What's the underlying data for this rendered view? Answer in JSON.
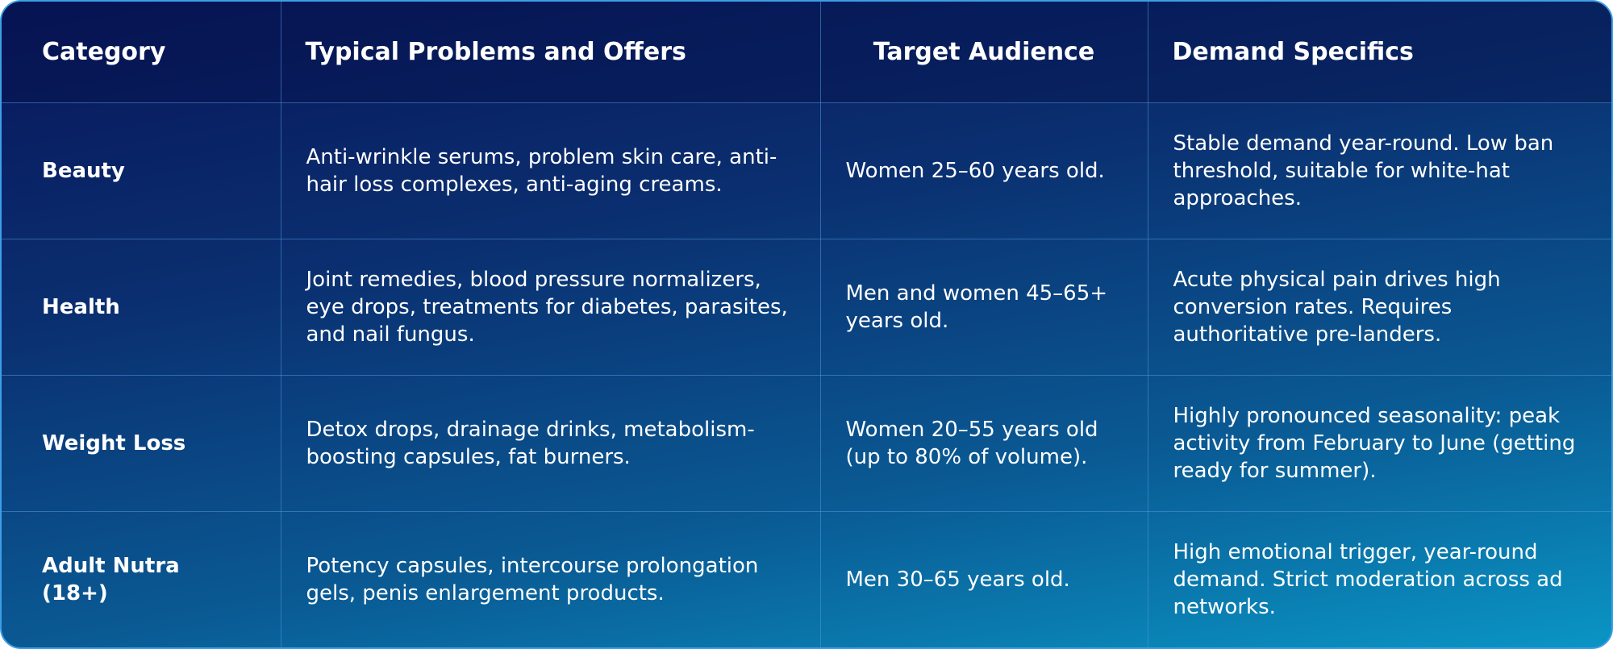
{
  "table": {
    "header": [
      "Category",
      "Typical Problems and Offers",
      "Target Audience",
      "Demand Specifics"
    ],
    "rows": [
      [
        "Beauty",
        "Anti-wrinkle serums, problem skin care, anti-hair loss complexes, anti-aging creams.",
        "Women 25–60 years old.",
        "Stable demand year-round. Low ban threshold, suitable for white-hat approaches."
      ],
      [
        "Health",
        "Joint remedies, blood pressure normalizers, eye drops, treatments for diabetes, parasites, and nail fungus.",
        "Men and women 45–65+ years old.",
        "Acute physical pain drives high conversion rates. Requires authoritative pre-landers."
      ],
      [
        "Weight Loss",
        "Detox drops, drainage drinks, metabolism-boosting capsules, fat burners.",
        "Women 20–55 years old (up to 80% of volume).",
        "Highly pronounced seasonality: peak activity from February to June (getting ready for summer)."
      ],
      [
        "Adult Nutra (18+)",
        "Potency capsules, intercourse prolongation gels, penis enlargement products.",
        "Men 30–65 years old.",
        "High emotional trigger, year-round demand. Strict moderation across ad networks."
      ]
    ]
  }
}
